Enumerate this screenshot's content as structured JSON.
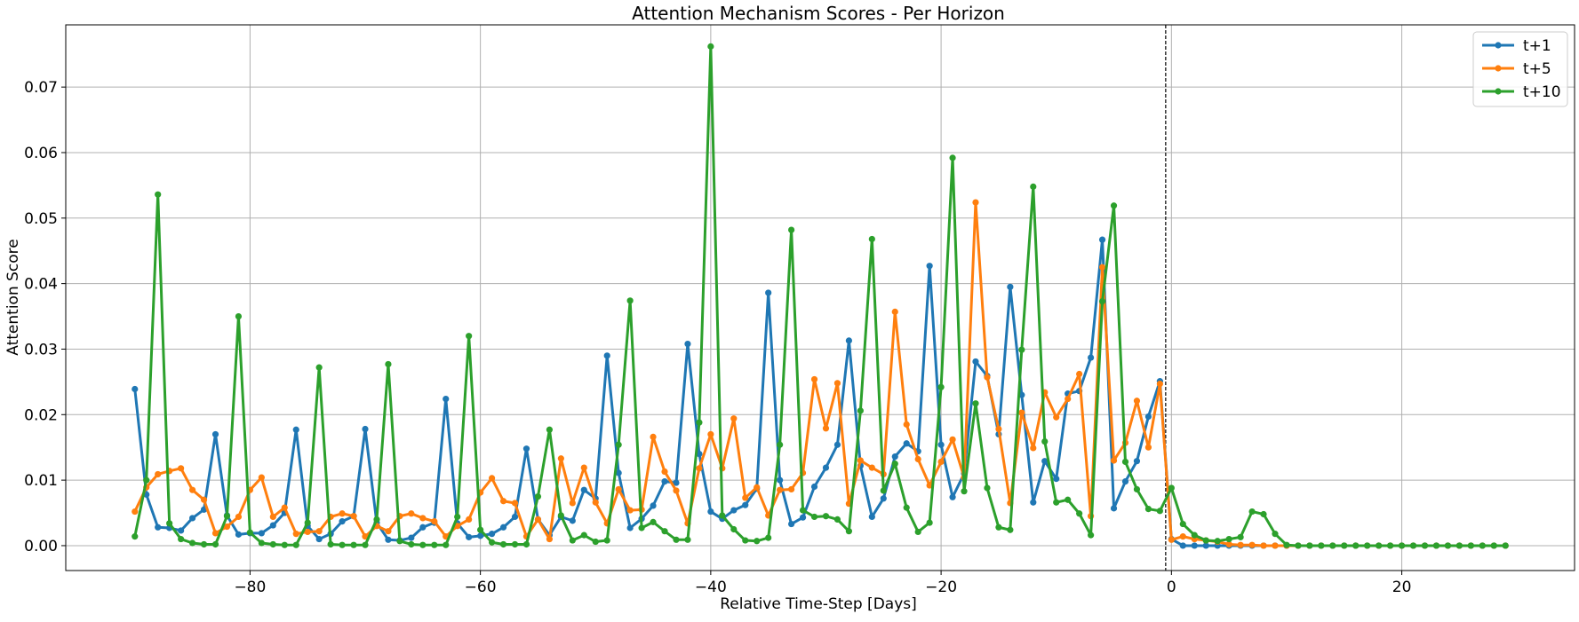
{
  "chart_data": {
    "type": "line",
    "title": "Attention Mechanism Scores - Per Horizon",
    "xlabel": "Relative Time-Step [Days]",
    "ylabel": "Attention Score",
    "xlim": [
      -96,
      35
    ],
    "ylim": [
      -0.0038,
      0.0795
    ],
    "xticks": [
      -80,
      -60,
      -40,
      -20,
      0,
      20
    ],
    "xtick_labels": [
      "−80",
      "−60",
      "−40",
      "−20",
      "0",
      "20"
    ],
    "yticks": [
      0.0,
      0.01,
      0.02,
      0.03,
      0.04,
      0.05,
      0.06,
      0.07
    ],
    "ytick_labels": [
      "0.00",
      "0.01",
      "0.02",
      "0.03",
      "0.04",
      "0.05",
      "0.06",
      "0.07"
    ],
    "grid": true,
    "legend_position": "top-right",
    "vline": {
      "x": -0.5,
      "style": "dashed",
      "color": "#000000"
    },
    "x": [
      -90,
      -89,
      -88,
      -87,
      -86,
      -85,
      -84,
      -83,
      -82,
      -81,
      -80,
      -79,
      -78,
      -77,
      -76,
      -75,
      -74,
      -73,
      -72,
      -71,
      -70,
      -69,
      -68,
      -67,
      -66,
      -65,
      -64,
      -63,
      -62,
      -61,
      -60,
      -59,
      -58,
      -57,
      -56,
      -55,
      -54,
      -53,
      -52,
      -51,
      -50,
      -49,
      -48,
      -47,
      -46,
      -45,
      -44,
      -43,
      -42,
      -41,
      -40,
      -39,
      -38,
      -37,
      -36,
      -35,
      -34,
      -33,
      -32,
      -31,
      -30,
      -29,
      -28,
      -27,
      -26,
      -25,
      -24,
      -23,
      -22,
      -21,
      -20,
      -19,
      -18,
      -17,
      -16,
      -15,
      -14,
      -13,
      -12,
      -11,
      -10,
      -9,
      -8,
      -7,
      -6,
      -5,
      -4,
      -3,
      -2,
      -1,
      0,
      1,
      2,
      3,
      4,
      5,
      6,
      7,
      8,
      9,
      10,
      11,
      12,
      13,
      14,
      15,
      16,
      17,
      18,
      19,
      20,
      21,
      22,
      23,
      24,
      25,
      26,
      27,
      28,
      29
    ],
    "series": [
      {
        "name": "t+1",
        "color": "#1f77b4",
        "values": [
          0.0239,
          0.0078,
          0.0028,
          0.0027,
          0.0023,
          0.0042,
          0.0055,
          0.017,
          0.0046,
          0.0017,
          0.0019,
          0.0019,
          0.0031,
          0.005,
          0.0177,
          0.003,
          0.001,
          0.0018,
          0.0037,
          0.0045,
          0.0178,
          0.0035,
          0.0009,
          0.0008,
          0.0012,
          0.0028,
          0.0035,
          0.0224,
          0.0034,
          0.0013,
          0.0015,
          0.0018,
          0.0028,
          0.0044,
          0.0148,
          0.004,
          0.0016,
          0.0044,
          0.0038,
          0.0085,
          0.0072,
          0.029,
          0.0111,
          0.0027,
          0.0041,
          0.0061,
          0.0098,
          0.0096,
          0.0308,
          0.014,
          0.0052,
          0.0041,
          0.0054,
          0.0062,
          0.0087,
          0.0386,
          0.01,
          0.0033,
          0.0043,
          0.009,
          0.0119,
          0.0154,
          0.0313,
          0.0122,
          0.0044,
          0.0072,
          0.0136,
          0.0156,
          0.0144,
          0.0427,
          0.0154,
          0.0074,
          0.011,
          0.0281,
          0.0259,
          0.017,
          0.0395,
          0.023,
          0.0066,
          0.0129,
          0.0102,
          0.0232,
          0.0236,
          0.0287,
          0.0467,
          0.0057,
          0.0098,
          0.0129,
          0.0197,
          0.0251,
          0.001,
          0.0,
          0.0,
          0.0,
          0.0,
          0.0,
          0.0,
          0.0,
          0.0,
          0.0,
          0.0,
          0.0,
          0.0,
          0.0,
          0.0,
          0.0,
          0.0,
          0.0,
          0.0,
          0.0,
          0.0,
          0.0,
          0.0,
          0.0,
          0.0,
          0.0,
          0.0,
          0.0,
          0.0,
          0.0
        ]
      },
      {
        "name": "t+5",
        "color": "#ff7f0e",
        "values": [
          0.0052,
          0.0089,
          0.0109,
          0.0114,
          0.0118,
          0.0085,
          0.007,
          0.0019,
          0.0029,
          0.0044,
          0.0085,
          0.0104,
          0.0044,
          0.0058,
          0.0018,
          0.0021,
          0.0022,
          0.0044,
          0.0049,
          0.0045,
          0.0014,
          0.003,
          0.0022,
          0.0045,
          0.0049,
          0.0042,
          0.0037,
          0.0014,
          0.003,
          0.004,
          0.0081,
          0.0103,
          0.0068,
          0.0065,
          0.0014,
          0.004,
          0.001,
          0.0133,
          0.0065,
          0.0119,
          0.0066,
          0.0034,
          0.0086,
          0.0054,
          0.0055,
          0.0166,
          0.0113,
          0.0084,
          0.0034,
          0.0118,
          0.017,
          0.0118,
          0.0194,
          0.0073,
          0.0089,
          0.0046,
          0.0085,
          0.0086,
          0.0111,
          0.0254,
          0.0179,
          0.0248,
          0.0064,
          0.013,
          0.0119,
          0.0109,
          0.0357,
          0.0185,
          0.0132,
          0.0092,
          0.0128,
          0.0162,
          0.0104,
          0.0524,
          0.0257,
          0.0178,
          0.0065,
          0.0203,
          0.0149,
          0.0234,
          0.0196,
          0.0224,
          0.0262,
          0.0045,
          0.0425,
          0.013,
          0.0157,
          0.0221,
          0.015,
          0.0247,
          0.0009,
          0.0014,
          0.001,
          0.0008,
          0.0006,
          0.0002,
          0.0001,
          0.0001,
          0.0,
          0.0,
          0.0,
          0.0,
          0.0,
          0.0,
          0.0,
          0.0,
          0.0,
          0.0,
          0.0,
          0.0,
          0.0,
          0.0,
          0.0,
          0.0,
          0.0,
          0.0,
          0.0,
          0.0,
          0.0,
          0.0
        ]
      },
      {
        "name": "t+10",
        "color": "#2ca02c",
        "values": [
          0.0014,
          0.01,
          0.0536,
          0.0034,
          0.001,
          0.0004,
          0.0002,
          0.0002,
          0.0045,
          0.035,
          0.002,
          0.0004,
          0.0002,
          0.0001,
          0.0001,
          0.0035,
          0.0272,
          0.0002,
          0.0001,
          0.0001,
          0.0001,
          0.004,
          0.0277,
          0.0007,
          0.0002,
          0.0001,
          0.0001,
          0.0001,
          0.0044,
          0.032,
          0.0024,
          0.0005,
          0.0002,
          0.0002,
          0.0002,
          0.0075,
          0.0177,
          0.0046,
          0.0008,
          0.0016,
          0.0006,
          0.0008,
          0.0154,
          0.0374,
          0.0027,
          0.0036,
          0.0022,
          0.0009,
          0.0009,
          0.0188,
          0.0762,
          0.0046,
          0.0025,
          0.0008,
          0.0007,
          0.0012,
          0.0154,
          0.0482,
          0.0054,
          0.0044,
          0.0045,
          0.004,
          0.0022,
          0.0206,
          0.0468,
          0.0084,
          0.0125,
          0.0058,
          0.0021,
          0.0035,
          0.0242,
          0.0592,
          0.0083,
          0.0217,
          0.0088,
          0.0028,
          0.0024,
          0.0299,
          0.0548,
          0.0159,
          0.0066,
          0.007,
          0.0049,
          0.0016,
          0.0373,
          0.0519,
          0.0128,
          0.0086,
          0.0056,
          0.0053,
          0.0088,
          0.0033,
          0.0016,
          0.0008,
          0.0007,
          0.001,
          0.0013,
          0.0052,
          0.0048,
          0.0018,
          0.0001,
          0.0,
          0.0,
          0.0,
          0.0,
          0.0,
          0.0,
          0.0,
          0.0,
          0.0,
          0.0,
          0.0,
          0.0,
          0.0,
          0.0,
          0.0,
          0.0,
          0.0,
          0.0,
          0.0
        ]
      }
    ]
  }
}
